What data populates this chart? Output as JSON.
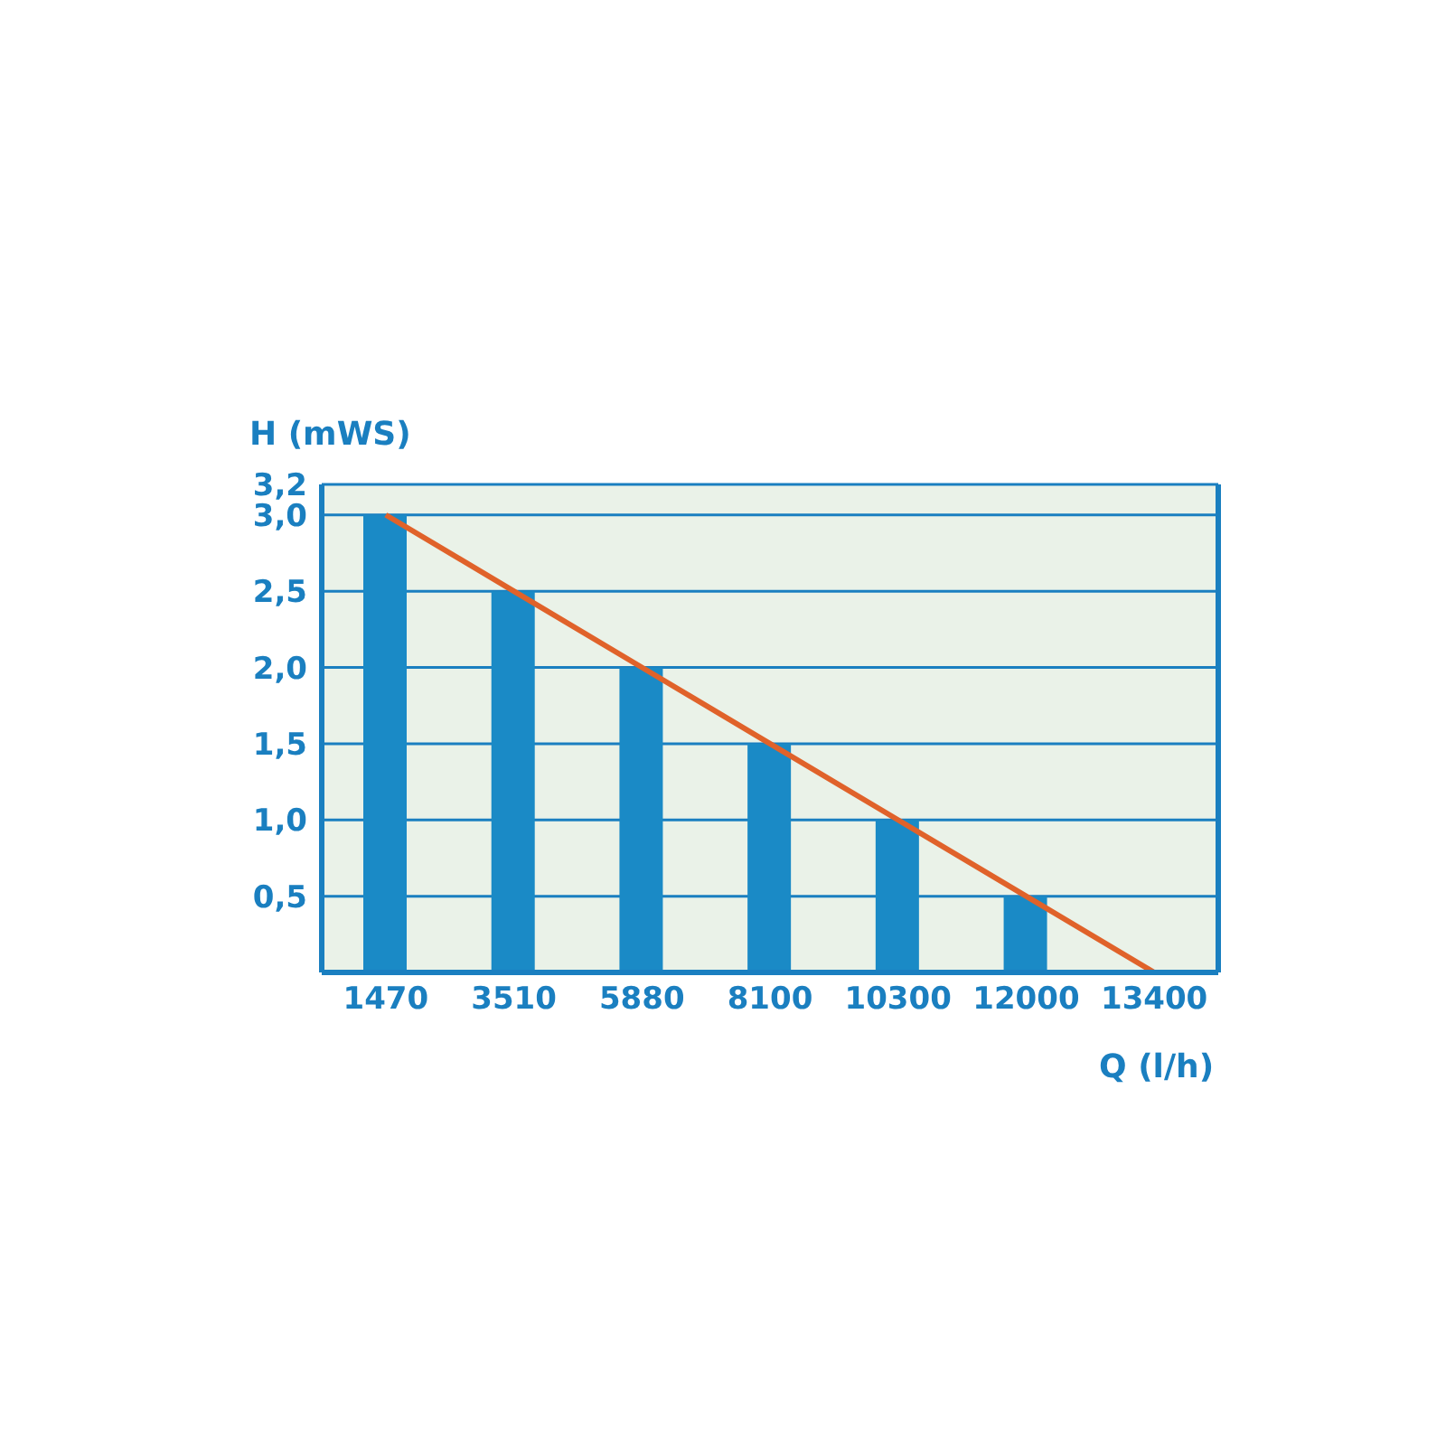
{
  "chart_data": {
    "type": "bar",
    "xlabel": "Q (l/h)",
    "ylabel": "H (mWS)",
    "categories": [
      "1470",
      "3510",
      "5880",
      "8100",
      "10300",
      "12000",
      "13400"
    ],
    "series": [
      {
        "color": "#1a8ac6",
        "values": [
          3.0,
          2.5,
          2.0,
          1.5,
          1.0,
          0.5,
          null
        ]
      },
      {
        "type": "line",
        "color": "#e0622a",
        "values": [
          3.0,
          2.5,
          2.0,
          1.5,
          1.0,
          0.5,
          0
        ]
      }
    ],
    "ylim": [
      0,
      3.2
    ],
    "yticks": [
      {
        "value": 0.5,
        "label": "0,5"
      },
      {
        "value": 1,
        "label": "1,0"
      },
      {
        "value": 1.5,
        "label": "1,5"
      },
      {
        "value": 2,
        "label": "2,0"
      },
      {
        "value": 2.5,
        "label": "2,5"
      },
      {
        "value": 3,
        "label": "3,0"
      },
      {
        "value": 3.2,
        "label": "3,2"
      }
    ],
    "grid": "y",
    "legend": false,
    "marker": "none",
    "line_style": "solid"
  }
}
